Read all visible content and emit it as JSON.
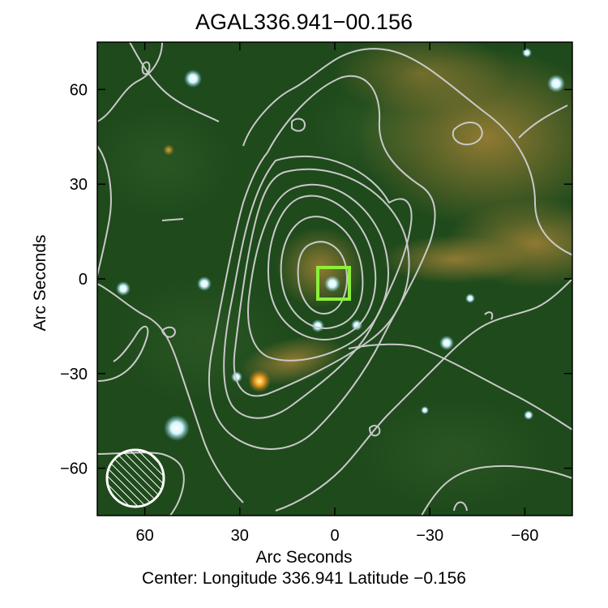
{
  "title": "AGAL336.941−00.156",
  "axes": {
    "xlabel": "Arc Seconds",
    "ylabel": "Arc Seconds",
    "x_ticks": [
      "60",
      "30",
      "0",
      "−30",
      "−60"
    ],
    "y_ticks": [
      "60",
      "30",
      "0",
      "−30",
      "−60"
    ],
    "x_tick_values": [
      60,
      30,
      0,
      -30,
      -60
    ],
    "y_tick_values": [
      60,
      30,
      0,
      -30,
      -60
    ],
    "xlim": [
      75,
      -75
    ],
    "ylim": [
      -75,
      75
    ]
  },
  "center_label": "Center:  Longitude 336.941 Latitude −0.156",
  "colors": {
    "background_field": "#1f4a1c",
    "contours": "#c9c9c9",
    "marker_box": "#8cf03a",
    "diffuse_emission": "#c88c2a"
  },
  "marker": {
    "shape": "square",
    "x_arcsec": 0,
    "y_arcsec": 0
  },
  "beam": {
    "shape": "hatched-circle",
    "x_arcsec": 60,
    "y_arcsec": -62
  }
}
